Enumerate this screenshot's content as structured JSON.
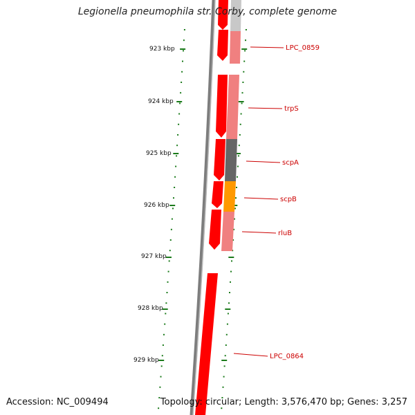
{
  "title": "Legionella pneumophila str. Corby, complete genome",
  "footer": {
    "accession": "Accession: NC_009494",
    "summary": "Topology: circular; Length: 3,576,470 bp; Genes: 3,257"
  },
  "ticks": [
    "923 kbp",
    "924 kbp",
    "925 kbp",
    "926 kbp",
    "927 kbp",
    "928 kbp",
    "929 kbp"
  ],
  "genes": [
    {
      "name": "LPC_0859",
      "color": "#f08080"
    },
    {
      "name": "trpS",
      "color": "#f08080"
    },
    {
      "name": "scpA",
      "color": "#666666"
    },
    {
      "name": "scpB",
      "color": "#ff9900"
    },
    {
      "name": "rluB",
      "color": "#f08080"
    },
    {
      "name": "LPC_0864",
      "color": "#ff0000"
    }
  ],
  "colors": {
    "forward_strand": "#ff0000",
    "backbone": "#808080",
    "tick": "#1a7a1a",
    "label": "#cc0000"
  }
}
